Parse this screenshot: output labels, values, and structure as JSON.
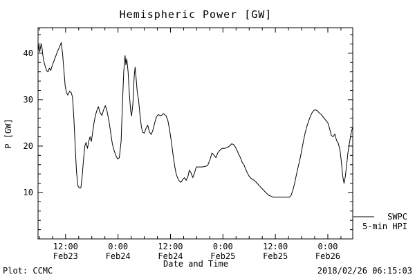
{
  "footer": {
    "left": "Plot: CCMC",
    "right": "2018/02/26 06:15:03"
  },
  "legend": {
    "source": "SWPC",
    "series": "5-min HPI"
  },
  "colors": {
    "background": "#ffffff",
    "foreground": "#000000"
  },
  "chart_data": {
    "type": "line",
    "title": "Hemispheric Power [GW]",
    "xlabel": "Date and Time",
    "ylabel": "P [GW]",
    "x_unit": "hours since Feb23 00:00",
    "xlim_hours": [
      5.7,
      77.7
    ],
    "ylim": [
      0,
      45.5
    ],
    "grid": false,
    "legend_position": "right-outside",
    "line_color": "#000000",
    "x_minor_hours": 3,
    "y_minor": 2,
    "x_ticks": [
      {
        "hour": 12,
        "time": "12:00",
        "date": "Feb23"
      },
      {
        "hour": 24,
        "time": "0:00",
        "date": "Feb24"
      },
      {
        "hour": 36,
        "time": "12:00",
        "date": "Feb24"
      },
      {
        "hour": 48,
        "time": "0:00",
        "date": "Feb25"
      },
      {
        "hour": 60,
        "time": "12:00",
        "date": "Feb25"
      },
      {
        "hour": 72,
        "time": "0:00",
        "date": "Feb26"
      }
    ],
    "y_ticks": [
      10,
      20,
      30,
      40
    ],
    "series": [
      {
        "name": "SWPC 5-min HPI",
        "points": [
          [
            5.7,
            40.5
          ],
          [
            5.9,
            41.8
          ],
          [
            6.1,
            40.3
          ],
          [
            6.3,
            41.5
          ],
          [
            6.5,
            42.0
          ],
          [
            6.8,
            39.5
          ],
          [
            7.1,
            38.0
          ],
          [
            7.4,
            37.0
          ],
          [
            7.7,
            36.2
          ],
          [
            8.0,
            36.0
          ],
          [
            8.3,
            36.8
          ],
          [
            8.6,
            36.3
          ],
          [
            9.0,
            37.5
          ],
          [
            9.4,
            38.5
          ],
          [
            9.8,
            39.5
          ],
          [
            10.2,
            40.5
          ],
          [
            10.6,
            41.3
          ],
          [
            11.0,
            42.3
          ],
          [
            11.3,
            40.0
          ],
          [
            11.6,
            36.5
          ],
          [
            11.9,
            33.0
          ],
          [
            12.2,
            31.5
          ],
          [
            12.5,
            31.0
          ],
          [
            12.9,
            31.8
          ],
          [
            13.3,
            31.5
          ],
          [
            13.6,
            30.5
          ],
          [
            13.9,
            26.0
          ],
          [
            14.2,
            20.0
          ],
          [
            14.5,
            14.5
          ],
          [
            14.8,
            11.5
          ],
          [
            15.1,
            11.0
          ],
          [
            15.5,
            11.0
          ],
          [
            15.8,
            13.5
          ],
          [
            16.1,
            17.0
          ],
          [
            16.4,
            20.0
          ],
          [
            16.7,
            20.8
          ],
          [
            17.0,
            19.5
          ],
          [
            17.3,
            21.0
          ],
          [
            17.6,
            22.0
          ],
          [
            17.9,
            21.0
          ],
          [
            18.2,
            23.0
          ],
          [
            18.5,
            25.0
          ],
          [
            18.8,
            26.5
          ],
          [
            19.1,
            27.5
          ],
          [
            19.5,
            28.5
          ],
          [
            19.9,
            27.2
          ],
          [
            20.3,
            26.6
          ],
          [
            20.7,
            27.8
          ],
          [
            21.1,
            28.7
          ],
          [
            21.5,
            27.5
          ],
          [
            21.9,
            25.5
          ],
          [
            22.3,
            23.0
          ],
          [
            22.7,
            20.5
          ],
          [
            23.1,
            19.0
          ],
          [
            23.5,
            18.0
          ],
          [
            23.9,
            17.2
          ],
          [
            24.3,
            17.5
          ],
          [
            24.7,
            21.0
          ],
          [
            25.0,
            29.0
          ],
          [
            25.3,
            36.0
          ],
          [
            25.6,
            39.5
          ],
          [
            25.8,
            37.5
          ],
          [
            26.0,
            38.8
          ],
          [
            26.3,
            36.0
          ],
          [
            26.6,
            31.0
          ],
          [
            26.9,
            27.5
          ],
          [
            27.1,
            26.5
          ],
          [
            27.4,
            29.0
          ],
          [
            27.7,
            35.0
          ],
          [
            27.9,
            37.0
          ],
          [
            28.1,
            35.0
          ],
          [
            28.4,
            31.5
          ],
          [
            28.7,
            30.0
          ],
          [
            29.0,
            27.0
          ],
          [
            29.3,
            24.5
          ],
          [
            29.6,
            23.0
          ],
          [
            30.0,
            22.8
          ],
          [
            30.4,
            23.8
          ],
          [
            30.8,
            24.5
          ],
          [
            31.2,
            23.0
          ],
          [
            31.6,
            22.5
          ],
          [
            32.0,
            23.5
          ],
          [
            32.4,
            25.0
          ],
          [
            32.8,
            26.3
          ],
          [
            33.2,
            26.8
          ],
          [
            33.8,
            26.5
          ],
          [
            34.4,
            27.0
          ],
          [
            35.0,
            26.5
          ],
          [
            35.4,
            25.5
          ],
          [
            35.8,
            23.5
          ],
          [
            36.2,
            21.0
          ],
          [
            36.6,
            18.0
          ],
          [
            37.0,
            15.5
          ],
          [
            37.3,
            14.0
          ],
          [
            37.6,
            13.2
          ],
          [
            38.0,
            12.5
          ],
          [
            38.4,
            12.2
          ],
          [
            38.8,
            12.8
          ],
          [
            39.2,
            13.2
          ],
          [
            39.6,
            12.6
          ],
          [
            40.0,
            13.5
          ],
          [
            40.3,
            14.8
          ],
          [
            40.7,
            14.2
          ],
          [
            41.1,
            13.2
          ],
          [
            41.5,
            14.2
          ],
          [
            41.9,
            15.5
          ],
          [
            42.5,
            15.5
          ],
          [
            43.2,
            15.5
          ],
          [
            43.9,
            15.6
          ],
          [
            44.5,
            15.8
          ],
          [
            45.0,
            17.0
          ],
          [
            45.5,
            18.5
          ],
          [
            46.0,
            18.0
          ],
          [
            46.4,
            17.5
          ],
          [
            46.8,
            18.5
          ],
          [
            47.2,
            19.0
          ],
          [
            47.8,
            19.5
          ],
          [
            48.4,
            19.5
          ],
          [
            49.0,
            19.7
          ],
          [
            49.5,
            20.0
          ],
          [
            50.0,
            20.5
          ],
          [
            50.5,
            20.3
          ],
          [
            51.0,
            19.5
          ],
          [
            51.5,
            18.5
          ],
          [
            52.0,
            17.5
          ],
          [
            52.4,
            16.5
          ],
          [
            52.8,
            16.0
          ],
          [
            53.2,
            15.0
          ],
          [
            53.6,
            14.2
          ],
          [
            54.0,
            13.5
          ],
          [
            54.5,
            13.0
          ],
          [
            55.0,
            12.7
          ],
          [
            55.5,
            12.3
          ],
          [
            56.0,
            11.8
          ],
          [
            56.5,
            11.3
          ],
          [
            57.0,
            10.8
          ],
          [
            57.5,
            10.3
          ],
          [
            58.0,
            9.8
          ],
          [
            58.5,
            9.4
          ],
          [
            59.0,
            9.2
          ],
          [
            59.5,
            9.0
          ],
          [
            60.2,
            9.0
          ],
          [
            61.0,
            9.0
          ],
          [
            61.8,
            9.0
          ],
          [
            62.6,
            9.0
          ],
          [
            63.2,
            9.0
          ],
          [
            63.6,
            9.4
          ],
          [
            64.0,
            10.5
          ],
          [
            64.4,
            12.0
          ],
          [
            64.8,
            13.8
          ],
          [
            65.2,
            15.5
          ],
          [
            65.6,
            17.0
          ],
          [
            66.0,
            19.0
          ],
          [
            66.4,
            21.0
          ],
          [
            66.8,
            22.8
          ],
          [
            67.2,
            24.2
          ],
          [
            67.6,
            25.4
          ],
          [
            68.0,
            26.4
          ],
          [
            68.4,
            27.2
          ],
          [
            68.8,
            27.7
          ],
          [
            69.2,
            27.8
          ],
          [
            69.6,
            27.6
          ],
          [
            70.0,
            27.2
          ],
          [
            70.5,
            26.8
          ],
          [
            71.0,
            26.2
          ],
          [
            71.5,
            25.6
          ],
          [
            72.0,
            25.0
          ],
          [
            72.4,
            23.8
          ],
          [
            72.8,
            22.3
          ],
          [
            73.2,
            22.0
          ],
          [
            73.6,
            22.6
          ],
          [
            74.0,
            21.2
          ],
          [
            74.4,
            20.6
          ],
          [
            74.8,
            19.0
          ],
          [
            75.1,
            16.5
          ],
          [
            75.4,
            13.5
          ],
          [
            75.7,
            12.0
          ],
          [
            76.0,
            13.5
          ],
          [
            76.3,
            16.0
          ],
          [
            76.6,
            18.5
          ],
          [
            77.0,
            21.0
          ],
          [
            77.4,
            23.2
          ],
          [
            77.7,
            24.0
          ]
        ]
      }
    ]
  }
}
